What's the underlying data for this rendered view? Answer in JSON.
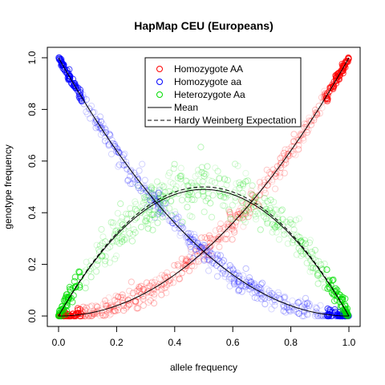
{
  "chart_data": {
    "type": "scatter",
    "title": "HapMap CEU (Europeans)",
    "xlabel": "allele frequency",
    "ylabel": "genotype frequency",
    "xlim": [
      0.0,
      1.0
    ],
    "ylim": [
      0.0,
      1.0
    ],
    "xticks": [
      "0.0",
      "0.2",
      "0.4",
      "0.6",
      "0.8",
      "1.0"
    ],
    "yticks": [
      "0.0",
      "0.2",
      "0.4",
      "0.6",
      "0.8",
      "1.0"
    ],
    "grid": false,
    "legend_position": "top-center",
    "series": [
      {
        "name": "Homozygote AA",
        "color": "#ff0000",
        "marker": "open-circle",
        "model": "p^2"
      },
      {
        "name": "Homozygote aa",
        "color": "#0000ff",
        "marker": "open-circle",
        "model": "(1-p)^2"
      },
      {
        "name": "Heterozygote Aa",
        "color": "#00dd00",
        "marker": "open-circle",
        "model": "2p(1-p)"
      },
      {
        "name": "Mean",
        "color": "#000000",
        "line": "solid"
      },
      {
        "name": "Hardy Weinberg Expectation",
        "color": "#000000",
        "line": "dashed"
      }
    ],
    "reference_points": {
      "x": [
        0.0,
        0.1,
        0.2,
        0.3,
        0.4,
        0.5,
        0.6,
        0.7,
        0.8,
        0.9,
        1.0
      ],
      "homozygote_AA": [
        0.0,
        0.01,
        0.04,
        0.09,
        0.16,
        0.25,
        0.36,
        0.49,
        0.64,
        0.81,
        1.0
      ],
      "homozygote_aa": [
        1.0,
        0.81,
        0.64,
        0.49,
        0.36,
        0.25,
        0.16,
        0.09,
        0.04,
        0.01,
        0.0
      ],
      "heterozygote_Aa": [
        0.0,
        0.18,
        0.32,
        0.42,
        0.48,
        0.5,
        0.48,
        0.42,
        0.32,
        0.18,
        0.0
      ],
      "mean_heterozygote": [
        0.0,
        0.17,
        0.31,
        0.41,
        0.47,
        0.49,
        0.47,
        0.41,
        0.31,
        0.17,
        0.0
      ]
    }
  }
}
